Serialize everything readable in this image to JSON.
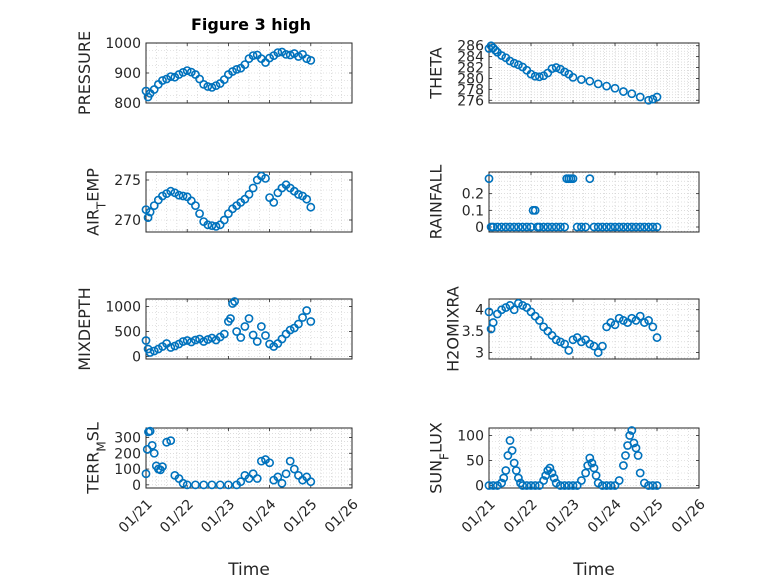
{
  "figure": {
    "title": "Figure 3 high"
  },
  "colors": {
    "marker": "#0072BD",
    "axis": "#262626",
    "grid": "#c8c8c8"
  },
  "chart_data": [
    {
      "type": "scatter",
      "ylabel": "PRESSURE",
      "title": "Figure 3 high",
      "xlim": [
        0,
        5
      ],
      "ylim": [
        800,
        1000
      ],
      "yticks": [
        800,
        900,
        1000
      ],
      "yticklabels": [
        "800",
        "900",
        "1000"
      ],
      "xticklabels": [],
      "xlabel": "",
      "grid": true,
      "series": [
        {
          "x": [
            0,
            0.05,
            0.1,
            0.2,
            0.3,
            0.4,
            0.5,
            0.6,
            0.7,
            0.8,
            0.9,
            1.0,
            1.1,
            1.2,
            1.3,
            1.4,
            1.5,
            1.6,
            1.7,
            1.8,
            1.9,
            2.0,
            2.1,
            2.2,
            2.3,
            2.4,
            2.5,
            2.6,
            2.7,
            2.8,
            2.9,
            3.0,
            3.1,
            3.2,
            3.3,
            3.4,
            3.5,
            3.6,
            3.7,
            3.8,
            3.9,
            4.0
          ],
          "y": [
            840,
            820,
            832,
            845,
            862,
            875,
            880,
            888,
            886,
            895,
            902,
            908,
            903,
            895,
            880,
            862,
            855,
            852,
            858,
            865,
            878,
            895,
            905,
            912,
            916,
            928,
            948,
            958,
            960,
            948,
            935,
            950,
            958,
            968,
            970,
            962,
            960,
            965,
            955,
            962,
            948,
            942
          ]
        }
      ]
    },
    {
      "type": "scatter",
      "ylabel": "THETA",
      "title": "",
      "xlim": [
        0,
        5
      ],
      "ylim": [
        275.5,
        286.5
      ],
      "yticks": [
        276,
        278,
        280,
        282,
        284,
        286
      ],
      "yticklabels": [
        "276",
        "278",
        "280",
        "282",
        "284",
        "286"
      ],
      "xticklabels": [],
      "xlabel": "",
      "grid": true,
      "series": [
        {
          "x": [
            0,
            0.05,
            0.1,
            0.15,
            0.2,
            0.3,
            0.4,
            0.5,
            0.6,
            0.7,
            0.8,
            0.9,
            1.0,
            1.1,
            1.2,
            1.3,
            1.4,
            1.5,
            1.6,
            1.7,
            1.8,
            1.9,
            2.0,
            2.2,
            2.4,
            2.6,
            2.8,
            3.0,
            3.2,
            3.4,
            3.6,
            3.8,
            3.9,
            4.0
          ],
          "y": [
            285.5,
            286,
            285.6,
            285.2,
            284.8,
            284.2,
            283.8,
            283.2,
            282.8,
            282.5,
            282.1,
            281.5,
            280.8,
            280.4,
            280.3,
            280.5,
            281,
            281.8,
            282,
            281.7,
            281.2,
            280.8,
            280.2,
            279.8,
            279.5,
            279,
            278.6,
            278.2,
            277.6,
            277.2,
            276.6,
            276,
            276.2,
            276.6
          ]
        }
      ]
    },
    {
      "type": "scatter",
      "ylabel": "AIR_TEMP",
      "title": "",
      "xlim": [
        0,
        5
      ],
      "ylim": [
        268.5,
        276
      ],
      "yticks": [
        270,
        275
      ],
      "yticklabels": [
        "270",
        "275"
      ],
      "xticklabels": [],
      "xlabel": "",
      "grid": true,
      "series": [
        {
          "x": [
            0,
            0.05,
            0.1,
            0.2,
            0.3,
            0.4,
            0.5,
            0.6,
            0.7,
            0.8,
            0.9,
            1.0,
            1.1,
            1.2,
            1.3,
            1.4,
            1.5,
            1.6,
            1.7,
            1.8,
            1.9,
            2.0,
            2.1,
            2.2,
            2.3,
            2.4,
            2.5,
            2.6,
            2.7,
            2.8,
            2.9,
            3.0,
            3.1,
            3.2,
            3.3,
            3.4,
            3.5,
            3.6,
            3.7,
            3.8,
            3.9,
            4.0
          ],
          "y": [
            271.3,
            270.3,
            271,
            271.8,
            272.5,
            273,
            273.3,
            273.6,
            273.4,
            273.1,
            273,
            272.9,
            272.4,
            271.8,
            270.8,
            269.8,
            269.4,
            269.3,
            269.2,
            269.4,
            270,
            270.8,
            271.4,
            271.8,
            272.2,
            272.6,
            273.2,
            274,
            275,
            275.5,
            275.2,
            272.8,
            272.2,
            273.4,
            274,
            274.4,
            274,
            273.6,
            273.2,
            273,
            272.6,
            271.6
          ]
        }
      ]
    },
    {
      "type": "scatter",
      "ylabel": "RAINFALL",
      "title": "",
      "xlim": [
        0,
        5
      ],
      "ylim": [
        -0.03,
        0.33
      ],
      "yticks": [
        0,
        0.1,
        0.2
      ],
      "yticklabels": [
        "0",
        "0.1",
        "0.2"
      ],
      "xticklabels": [],
      "xlabel": "",
      "grid": true,
      "series": [
        {
          "x": [
            0,
            0.05,
            0.1,
            0.2,
            0.3,
            0.4,
            0.5,
            0.6,
            0.7,
            0.8,
            0.9,
            1.0,
            1.05,
            1.1,
            1.15,
            1.2,
            1.3,
            1.4,
            1.5,
            1.6,
            1.7,
            1.8,
            1.85,
            1.9,
            1.95,
            2.0,
            2.1,
            2.2,
            2.3,
            2.4,
            2.5,
            2.6,
            2.7,
            2.8,
            2.9,
            3.0,
            3.1,
            3.2,
            3.3,
            3.4,
            3.5,
            3.6,
            3.7,
            3.8,
            3.9,
            4.0
          ],
          "y": [
            0.29,
            0,
            0,
            0,
            0,
            0,
            0,
            0,
            0,
            0,
            0,
            0,
            0.1,
            0.1,
            0,
            0,
            0,
            0,
            0,
            0,
            0,
            0,
            0.29,
            0.29,
            0.29,
            0.29,
            0,
            0,
            0,
            0.29,
            0,
            0,
            0,
            0,
            0,
            0,
            0,
            0,
            0,
            0,
            0,
            0,
            0,
            0,
            0,
            0
          ]
        }
      ]
    },
    {
      "type": "scatter",
      "ylabel": "MIXDEPTH",
      "title": "",
      "xlim": [
        0,
        5
      ],
      "ylim": [
        -50,
        1150
      ],
      "yticks": [
        0,
        500,
        1000
      ],
      "yticklabels": [
        "0",
        "500",
        "1000"
      ],
      "xticklabels": [],
      "xlabel": "",
      "grid": true,
      "series": [
        {
          "x": [
            0,
            0.05,
            0.1,
            0.2,
            0.3,
            0.4,
            0.5,
            0.6,
            0.7,
            0.8,
            0.9,
            1.0,
            1.1,
            1.2,
            1.3,
            1.4,
            1.5,
            1.6,
            1.7,
            1.8,
            1.9,
            2.0,
            2.05,
            2.1,
            2.15,
            2.2,
            2.3,
            2.4,
            2.5,
            2.6,
            2.7,
            2.8,
            2.9,
            3.0,
            3.1,
            3.2,
            3.3,
            3.4,
            3.5,
            3.6,
            3.7,
            3.8,
            3.9,
            4.0
          ],
          "y": [
            320,
            150,
            80,
            110,
            150,
            200,
            260,
            180,
            210,
            250,
            300,
            320,
            290,
            330,
            350,
            300,
            340,
            370,
            330,
            390,
            450,
            700,
            760,
            1060,
            1100,
            500,
            380,
            600,
            760,
            430,
            300,
            600,
            420,
            250,
            200,
            260,
            350,
            450,
            530,
            570,
            650,
            780,
            920,
            700
          ]
        }
      ]
    },
    {
      "type": "scatter",
      "ylabel": "H2OMIXRA",
      "title": "",
      "xlim": [
        0,
        5
      ],
      "ylim": [
        2.85,
        4.25
      ],
      "yticks": [
        3,
        3.5,
        4
      ],
      "yticklabels": [
        "3",
        "3.5",
        "4"
      ],
      "xticklabels": [],
      "xlabel": "",
      "grid": true,
      "series": [
        {
          "x": [
            0,
            0.05,
            0.1,
            0.2,
            0.3,
            0.4,
            0.5,
            0.6,
            0.7,
            0.8,
            0.9,
            1.0,
            1.1,
            1.2,
            1.3,
            1.4,
            1.5,
            1.6,
            1.7,
            1.8,
            1.9,
            2.0,
            2.1,
            2.2,
            2.3,
            2.4,
            2.5,
            2.6,
            2.7,
            2.8,
            2.9,
            3.0,
            3.1,
            3.2,
            3.3,
            3.4,
            3.5,
            3.6,
            3.7,
            3.8,
            3.9,
            4.0
          ],
          "y": [
            3.95,
            3.55,
            3.7,
            3.9,
            4.0,
            4.05,
            4.1,
            4.0,
            4.15,
            4.1,
            4.05,
            3.95,
            3.85,
            3.75,
            3.6,
            3.5,
            3.4,
            3.3,
            3.25,
            3.2,
            3.05,
            3.3,
            3.35,
            3.25,
            3.3,
            3.2,
            3.15,
            3.0,
            3.15,
            3.6,
            3.7,
            3.65,
            3.8,
            3.75,
            3.7,
            3.8,
            3.75,
            3.85,
            3.7,
            3.75,
            3.6,
            3.35
          ]
        }
      ]
    },
    {
      "type": "scatter",
      "ylabel": "TERR_MSL",
      "title": "",
      "xlim": [
        0,
        5
      ],
      "ylim": [
        -20,
        360
      ],
      "yticks": [
        0,
        100,
        200,
        300
      ],
      "yticklabels": [
        "0",
        "100",
        "200",
        "300"
      ],
      "xticklabels": [
        "01/21",
        "01/22",
        "01/23",
        "01/24",
        "01/25",
        "01/26"
      ],
      "xticks": [
        0,
        1,
        2,
        3,
        4,
        5
      ],
      "xlabel": "Time",
      "grid": true,
      "series": [
        {
          "x": [
            0,
            0.03,
            0.06,
            0.1,
            0.15,
            0.2,
            0.25,
            0.3,
            0.35,
            0.4,
            0.5,
            0.6,
            0.7,
            0.8,
            0.9,
            1.0,
            1.2,
            1.4,
            1.6,
            1.8,
            2.0,
            2.2,
            2.3,
            2.4,
            2.5,
            2.6,
            2.7,
            2.8,
            2.9,
            3.0,
            3.1,
            3.2,
            3.3,
            3.4,
            3.5,
            3.6,
            3.7,
            3.8,
            3.9,
            4.0
          ],
          "y": [
            70,
            225,
            335,
            340,
            250,
            200,
            120,
            100,
            95,
            115,
            270,
            280,
            60,
            40,
            10,
            0,
            0,
            0,
            0,
            0,
            0,
            0,
            20,
            60,
            40,
            70,
            40,
            150,
            160,
            140,
            30,
            50,
            10,
            70,
            150,
            100,
            60,
            30,
            50,
            20
          ]
        }
      ]
    },
    {
      "type": "scatter",
      "ylabel": "SUN_FLUX",
      "title": "",
      "xlim": [
        0,
        5
      ],
      "ylim": [
        -5,
        115
      ],
      "yticks": [
        0,
        50,
        100
      ],
      "yticklabels": [
        "0",
        "50",
        "100"
      ],
      "xticklabels": [
        "01/21",
        "01/22",
        "01/23",
        "01/24",
        "01/25",
        "01/26"
      ],
      "xticks": [
        0,
        1,
        2,
        3,
        4,
        5
      ],
      "xlabel": "Time",
      "grid": true,
      "series": [
        {
          "x": [
            0,
            0.1,
            0.2,
            0.3,
            0.35,
            0.4,
            0.45,
            0.5,
            0.55,
            0.6,
            0.65,
            0.7,
            0.75,
            0.8,
            0.9,
            1.0,
            1.1,
            1.2,
            1.3,
            1.35,
            1.4,
            1.45,
            1.5,
            1.55,
            1.6,
            1.7,
            1.8,
            1.9,
            2.0,
            2.1,
            2.2,
            2.3,
            2.35,
            2.4,
            2.45,
            2.5,
            2.55,
            2.6,
            2.7,
            2.8,
            2.9,
            3.0,
            3.1,
            3.2,
            3.25,
            3.3,
            3.35,
            3.4,
            3.45,
            3.5,
            3.55,
            3.6,
            3.7,
            3.8,
            3.9,
            4.0
          ],
          "y": [
            0,
            0,
            0,
            5,
            15,
            30,
            60,
            90,
            70,
            45,
            30,
            15,
            5,
            0,
            0,
            0,
            0,
            0,
            10,
            20,
            30,
            35,
            25,
            15,
            5,
            0,
            0,
            0,
            0,
            0,
            10,
            25,
            40,
            55,
            45,
            35,
            20,
            5,
            0,
            0,
            0,
            0,
            10,
            40,
            60,
            80,
            100,
            110,
            85,
            75,
            60,
            25,
            5,
            0,
            0,
            0
          ]
        }
      ]
    }
  ]
}
